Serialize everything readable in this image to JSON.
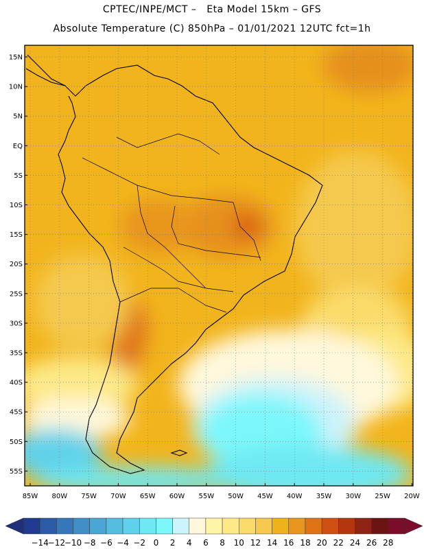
{
  "header": {
    "line1": "CPTEC/INPE/MCT –   Eta Model 15km – GFS",
    "line2": "Absolute Temperature (C) 850hPa – 01/01/2021 12UTC fct=1h"
  },
  "map": {
    "region": "South America",
    "lat_range": [
      -58,
      16
    ],
    "lon_range": [
      -86,
      -20
    ],
    "lat_ticks": [
      "15N",
      "10N",
      "5N",
      "EQ",
      "5S",
      "10S",
      "15S",
      "20S",
      "25S",
      "30S",
      "35S",
      "40S",
      "45S",
      "50S",
      "55S"
    ],
    "lon_ticks": [
      "85W",
      "80W",
      "75W",
      "70W",
      "65W",
      "60W",
      "55W",
      "50W",
      "45W",
      "40W",
      "35W",
      "30W",
      "25W",
      "20W"
    ],
    "grid": "dotted"
  },
  "colorbar": {
    "labels": [
      "-14",
      "-12",
      "-10",
      "-8",
      "-6",
      "-4",
      "-2",
      "0",
      "2",
      "4",
      "6",
      "8",
      "10",
      "12",
      "14",
      "16",
      "18",
      "20",
      "22",
      "24",
      "26",
      "28"
    ],
    "colors": [
      "#1f3a8f",
      "#2a5aa8",
      "#3577b8",
      "#3f8fc6",
      "#4aa6d3",
      "#55bde0",
      "#60d1ea",
      "#6ee8f2",
      "#7cf7fb",
      "#cdf3fb",
      "#fff8dc",
      "#fff5a8",
      "#fde987",
      "#fadb6a",
      "#f5c94e",
      "#f0b21a",
      "#e9961f",
      "#e07317",
      "#cf4f12",
      "#b3360e",
      "#8e2316",
      "#6b1414",
      "#7a0e2a"
    ],
    "unit": "C"
  }
}
